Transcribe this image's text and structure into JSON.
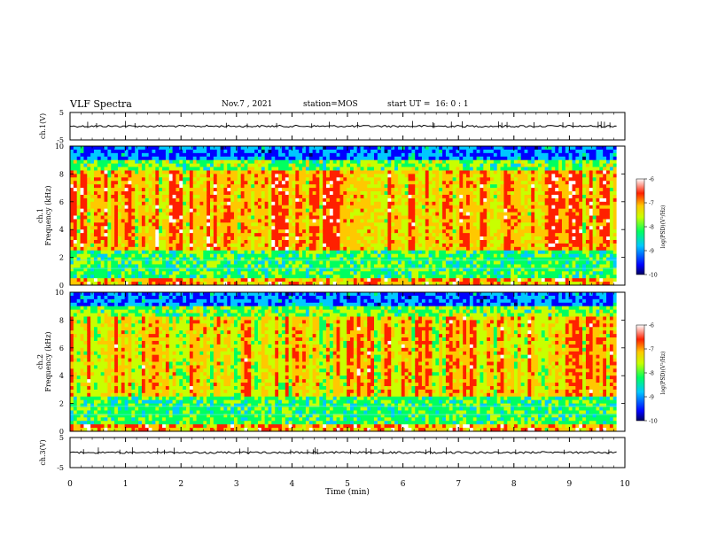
{
  "header": {
    "title": "VLF Spectra",
    "date": "Nov.7 , 2021",
    "station": "station=MOS",
    "start": "start UT =  16: 0 : 1"
  },
  "chart_data": [
    {
      "type": "line",
      "panel": "ch1-waveform",
      "ylabel": "ch.1(V)",
      "ylim": [
        -5,
        5
      ],
      "yticks": [
        "5",
        "-5"
      ],
      "xlim": [
        0,
        10
      ],
      "description_values": {
        "baseline": 0.0
      }
    },
    {
      "type": "heatmap",
      "panel": "ch1-spectrogram",
      "ylabel": "ch.1 Frequency (kHz)",
      "ylim": [
        0,
        10
      ],
      "yticks": [
        "0",
        "2",
        "4",
        "6",
        "8",
        "10"
      ],
      "xlim": [
        0,
        9.85
      ],
      "colorbar": {
        "label": "log(PSD)(V²/Hz)",
        "range": [
          -10,
          -6
        ],
        "ticks": [
          "-6",
          "-7",
          "-8",
          "-9",
          "-10"
        ]
      }
    },
    {
      "type": "heatmap",
      "panel": "ch2-spectrogram",
      "ylabel": "ch.2 Frequency (kHz)",
      "ylim": [
        0,
        10
      ],
      "yticks": [
        "0",
        "2",
        "4",
        "6",
        "8",
        "10"
      ],
      "xlim": [
        0,
        9.85
      ],
      "colorbar": {
        "label": "log(PSD)(V²/Hz)",
        "range": [
          -10,
          -6
        ],
        "ticks": [
          "-6",
          "-7",
          "-8",
          "-9",
          "-10"
        ]
      }
    },
    {
      "type": "line",
      "panel": "ch3-waveform",
      "ylabel": "ch.3(V)",
      "ylim": [
        -5,
        5
      ],
      "yticks": [
        "5",
        "-5"
      ],
      "xlim": [
        0,
        10
      ],
      "description_values": {
        "baseline": 0.0
      }
    }
  ],
  "xaxis": {
    "label": "Time (min)",
    "ticks": [
      "0",
      "1",
      "2",
      "3",
      "4",
      "5",
      "6",
      "7",
      "8",
      "9",
      "10"
    ]
  },
  "colorbar_gradient": [
    "#000060",
    "#0000ff",
    "#00c8ff",
    "#00ff60",
    "#c8ff00",
    "#ffc800",
    "#ff2000",
    "#ffffff"
  ]
}
